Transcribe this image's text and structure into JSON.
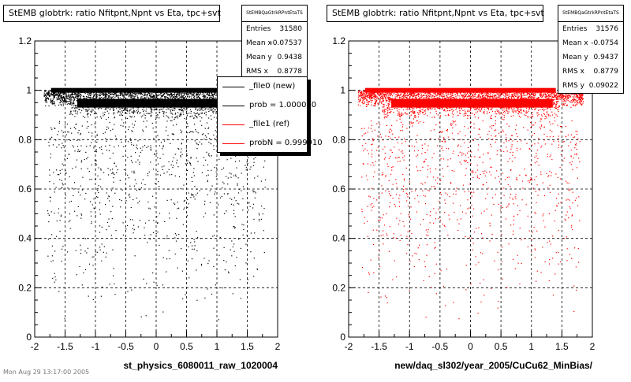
{
  "left_panel": {
    "title": "StEMB globtrk: ratio Nfitpnt,Npnt vs Eta, tpc+svt",
    "stats": {
      "name": "StEMBQaGtrkRPntEtaTS",
      "rows": [
        {
          "key": "Entries",
          "value": "31580"
        },
        {
          "key": "Mean x",
          "value": "-0.07537"
        },
        {
          "key": "Mean y",
          "value": "0.9438"
        },
        {
          "key": "RMS x",
          "value": "0.8778"
        }
      ]
    },
    "legend": [
      {
        "label": "_file0 (new)",
        "color": "#000000"
      },
      {
        "label": "prob = 1.000000",
        "color": "#000000"
      },
      {
        "label": "_file1 (ref)",
        "color": "#ff0000"
      },
      {
        "label": "probN = 0.999910",
        "color": "#ff0000"
      }
    ]
  },
  "right_panel": {
    "title": "StEMB globtrk: ratio Nfitpnt,Npnt vs Eta, tpc+svt",
    "stats": {
      "name": "StEMBQaGtrkRPntEtaTS",
      "rows": [
        {
          "key": "Entries",
          "value": "31576"
        },
        {
          "key": "Mean x",
          "value": "-0.0754"
        },
        {
          "key": "Mean y",
          "value": "0.9437"
        },
        {
          "key": "RMS x",
          "value": "0.8779"
        },
        {
          "key": "RMS y",
          "value": "0.09022"
        }
      ]
    }
  },
  "footer": "Mon Aug 29 13:17:00 2005",
  "chart_data": [
    {
      "type": "scatter",
      "title": "StEMB globtrk: ratio Nfitpnt,Npnt vs Eta, tpc+svt",
      "xlabel": "st_physics_6080011_raw_1020004",
      "ylabel": "",
      "xlim": [
        -2,
        2
      ],
      "ylim": [
        0,
        1.2
      ],
      "xticks": [
        "-2",
        "-1.5",
        "-1",
        "-0.5",
        "0",
        "0.5",
        "1",
        "1.5",
        "2"
      ],
      "yticks": [
        "0",
        "0.2",
        "0.4",
        "0.6",
        "0.8",
        "1",
        "1.2"
      ],
      "grid": true,
      "color": "#000000",
      "series": [
        {
          "name": "_file0 (new)",
          "x_range": [
            -1.85,
            1.85
          ],
          "core_y": 1.0,
          "band_y": [
            0.88,
            1.0
          ],
          "sparse_y": [
            0.05,
            0.88
          ]
        }
      ]
    },
    {
      "type": "scatter",
      "title": "StEMB globtrk: ratio Nfitpnt,Npnt vs Eta, tpc+svt",
      "xlabel": "new/daq_sl302/year_2005/CuCu62_MinBias/",
      "ylabel": "",
      "xlim": [
        -2,
        2
      ],
      "ylim": [
        0,
        1.2
      ],
      "xticks": [
        "-2",
        "-1.5",
        "-1",
        "-0.5",
        "0",
        "0.5",
        "1",
        "1.5",
        "2"
      ],
      "yticks": [
        "0",
        "0.2",
        "0.4",
        "0.6",
        "0.8",
        "1",
        "1.2"
      ],
      "grid": true,
      "color": "#ff0000",
      "series": [
        {
          "name": "_file1 (ref)",
          "x_range": [
            -1.85,
            1.85
          ],
          "core_y": 1.0,
          "band_y": [
            0.88,
            1.0
          ],
          "sparse_y": [
            0.05,
            0.88
          ]
        }
      ]
    }
  ]
}
